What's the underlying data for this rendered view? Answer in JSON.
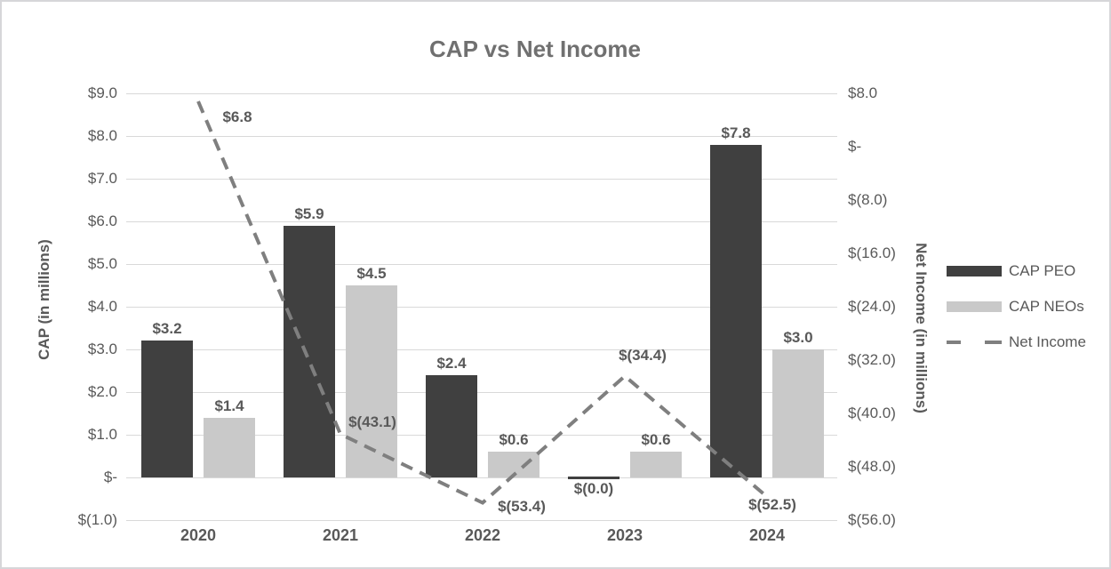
{
  "title": "CAP vs Net Income",
  "left_axis": {
    "title": "CAP (in millions)",
    "tick_labels": [
      "$9.0",
      "$8.0",
      "$7.0",
      "$6.0",
      "$5.0",
      "$4.0",
      "$3.0",
      "$2.0",
      "$1.0",
      "$-",
      "$(1.0)"
    ],
    "tick_values": [
      9,
      8,
      7,
      6,
      5,
      4,
      3,
      2,
      1,
      0,
      -1
    ]
  },
  "right_axis": {
    "title": "Net Income (in millions)",
    "tick_labels": [
      "$8.0",
      "$-",
      "$(8.0)",
      "$(16.0)",
      "$(24.0)",
      "$(32.0)",
      "$(40.0)",
      "$(48.0)",
      "$(56.0)"
    ],
    "tick_values": [
      8,
      0,
      -8,
      -16,
      -24,
      -32,
      -40,
      -48,
      -56
    ]
  },
  "legend": {
    "items": [
      {
        "label": "CAP PEO",
        "type": "bar",
        "color": "#404040"
      },
      {
        "label": "CAP NEOs",
        "type": "bar",
        "color": "#c9c9c9"
      },
      {
        "label": "Net Income",
        "type": "line",
        "color": "#7f7f7f"
      }
    ]
  },
  "colors": {
    "cap_peo": "#404040",
    "cap_neos": "#c9c9c9",
    "net_income_line": "#7f7f7f",
    "gridline": "#d9d9d9",
    "text": "#595959",
    "title_text": "#707070"
  },
  "chart_data": {
    "type": "bar",
    "subtype": "grouped-bars-with-line-overlay",
    "title": "CAP vs Net Income",
    "categories": [
      "2020",
      "2021",
      "2022",
      "2023",
      "2024"
    ],
    "series": [
      {
        "name": "CAP PEO",
        "type": "bar",
        "axis": "left",
        "color": "#404040",
        "values": [
          3.2,
          5.9,
          2.4,
          -0.0,
          7.8
        ],
        "labels": [
          "$3.2",
          "$5.9",
          "$2.4",
          "$(0.0)",
          "$7.8"
        ]
      },
      {
        "name": "CAP NEOs",
        "type": "bar",
        "axis": "left",
        "color": "#c9c9c9",
        "values": [
          1.4,
          4.5,
          0.6,
          0.6,
          3.0
        ],
        "labels": [
          "$1.4",
          "$4.5",
          "$0.6",
          "$0.6",
          "$3.0"
        ]
      },
      {
        "name": "Net Income",
        "type": "line",
        "dashed": true,
        "axis": "right",
        "color": "#7f7f7f",
        "values": [
          6.8,
          -43.1,
          -53.4,
          -34.4,
          -52.5
        ],
        "labels": [
          "$6.8",
          "$(43.1)",
          "$(53.4)",
          "$(34.4)",
          "$(52.5)"
        ]
      }
    ],
    "xlabel": "",
    "ylabel_left": "CAP (in millions)",
    "ylabel_right": "Net Income (in millions)",
    "ylim_left": [
      -1,
      9
    ],
    "ylim_right": [
      -56,
      8
    ],
    "left_tick_step": 1.0,
    "right_tick_step": 8.0,
    "grid": true,
    "legend_position": "right"
  }
}
